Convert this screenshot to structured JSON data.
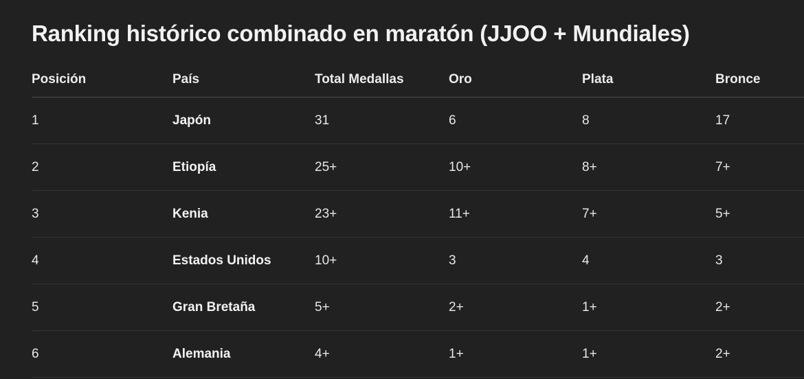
{
  "title": "Ranking histórico combinado en maratón (JJOO + Mundiales)",
  "table": {
    "headers": [
      "Posición",
      "País",
      "Total Medallas",
      "Oro",
      "Plata",
      "Bronce"
    ],
    "rows": [
      [
        "1",
        "Japón",
        "31",
        "6",
        "8",
        "17"
      ],
      [
        "2",
        "Etiopía",
        "25+",
        "10+",
        "8+",
        "7+"
      ],
      [
        "3",
        "Kenia",
        "23+",
        "11+",
        "7+",
        "5+"
      ],
      [
        "4",
        "Estados Unidos",
        "10+",
        "3",
        "4",
        "3"
      ],
      [
        "5",
        "Gran Bretaña",
        "5+",
        "2+",
        "1+",
        "2+"
      ],
      [
        "6",
        "Alemania",
        "4+",
        "1+",
        "1+",
        "2+"
      ]
    ]
  }
}
